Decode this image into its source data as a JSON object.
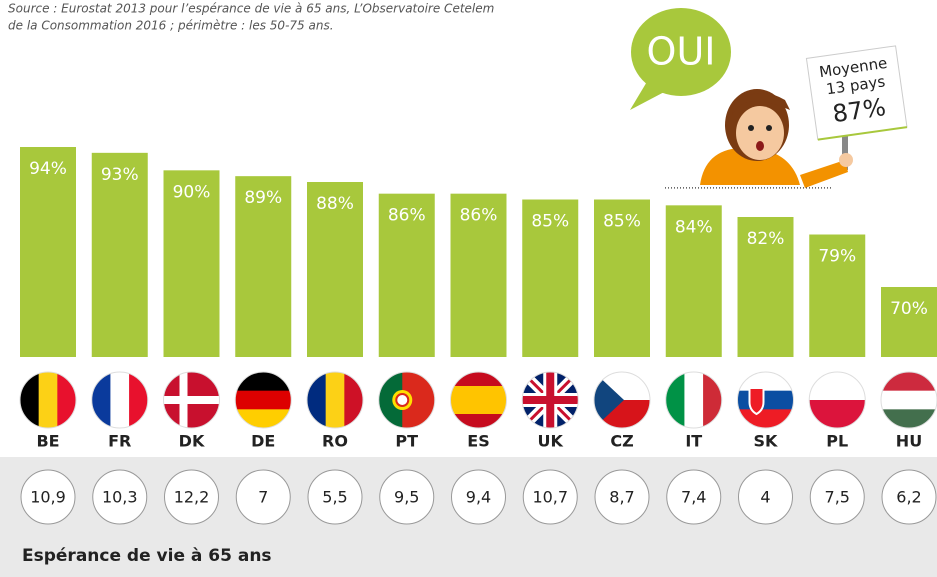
{
  "chart_data": {
    "type": "bar",
    "source": "Source : Eurostat 2013 pour l’espérance de vie à 65 ans, L’Observatoire Cetelem",
    "source_line2": "de la Consommation 2016 ; périmètre : les 50-75 ans.",
    "bubble": "OUI",
    "average": {
      "title": "Moyenne",
      "subtitle": "13 pays",
      "value": 87,
      "value_label": "87%"
    },
    "categories": [
      "BE",
      "FR",
      "DK",
      "DE",
      "RO",
      "PT",
      "ES",
      "UK",
      "CZ",
      "IT",
      "SK",
      "PL",
      "HU"
    ],
    "values": [
      94,
      93,
      90,
      89,
      88,
      86,
      86,
      85,
      85,
      84,
      82,
      79,
      70
    ],
    "value_labels": [
      "94%",
      "93%",
      "90%",
      "89%",
      "88%",
      "86%",
      "86%",
      "85%",
      "85%",
      "84%",
      "82%",
      "79%",
      "70%"
    ],
    "color": "#a8c83c",
    "ylim": [
      58,
      100
    ],
    "life_expectancy": {
      "label": "Espérance de vie à 65 ans",
      "values": [
        10.9,
        10.3,
        12.2,
        7,
        5.5,
        9.5,
        9.4,
        10.7,
        8.7,
        7.4,
        4,
        7.5,
        6.2
      ],
      "value_labels": [
        "10,9",
        "10,3",
        "12,2",
        "7",
        "5,5",
        "9,5",
        "9,4",
        "10,7",
        "8,7",
        "7,4",
        "4",
        "7,5",
        "6,2"
      ]
    }
  }
}
